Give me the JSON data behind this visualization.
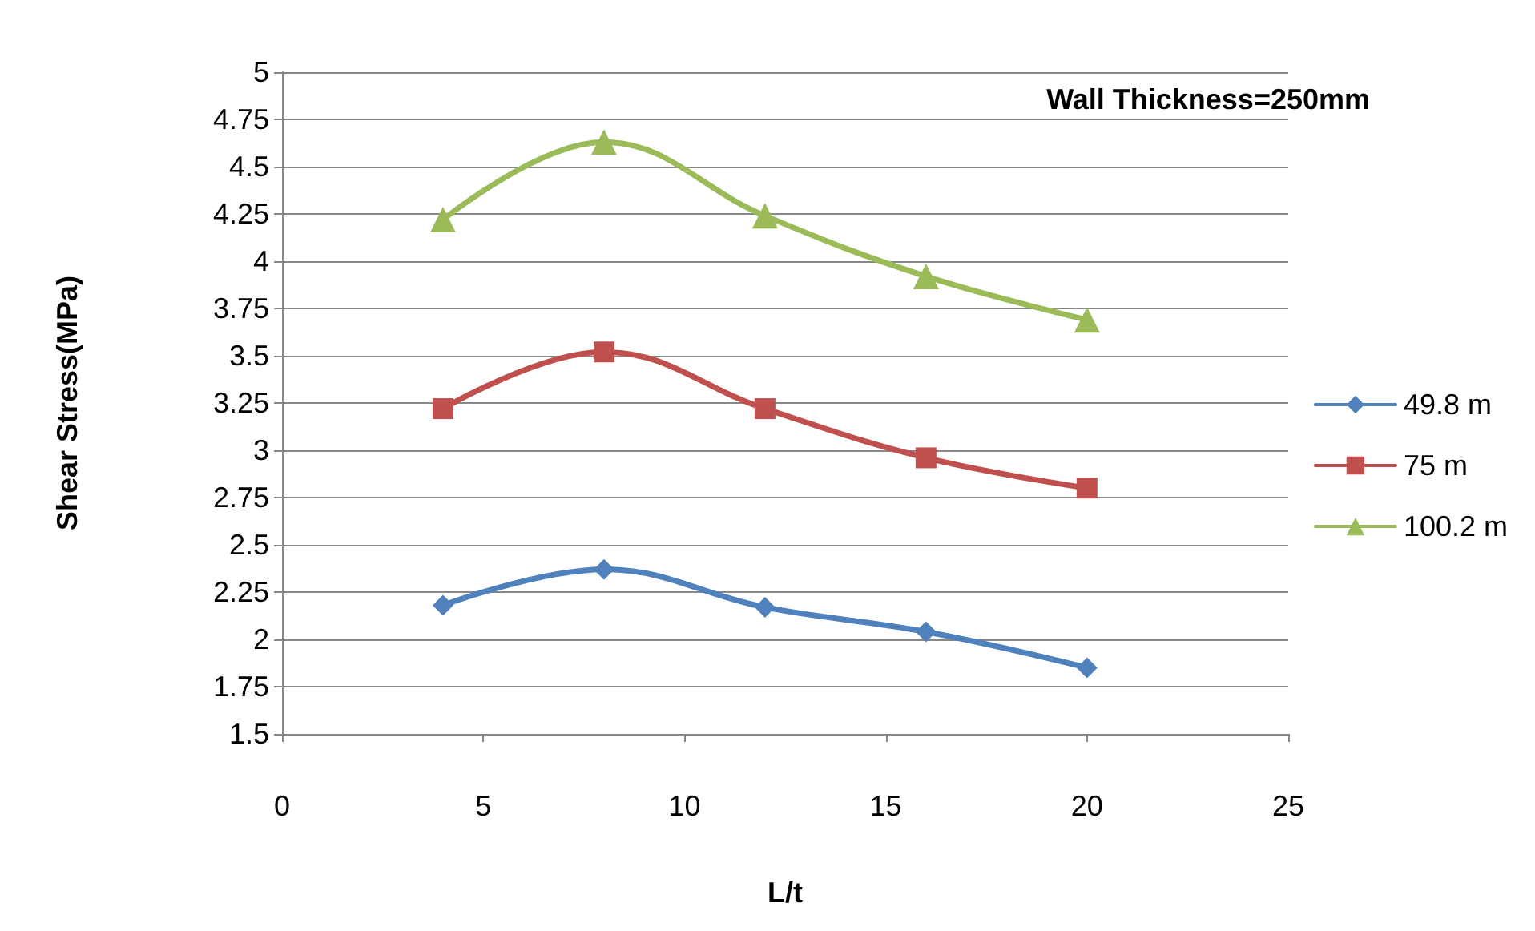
{
  "chart_data": {
    "type": "line",
    "title": "Wall Thickness=250mm",
    "xlabel": "L/t",
    "ylabel": "Shear Stress(MPa)",
    "x": [
      4,
      8,
      12,
      16,
      20
    ],
    "series": [
      {
        "name": "49.8 m",
        "color": "#4f81bd",
        "marker": "diamond",
        "values": [
          2.18,
          2.37,
          2.17,
          2.04,
          1.85
        ]
      },
      {
        "name": "75 m",
        "color": "#c0504d",
        "marker": "square",
        "values": [
          3.22,
          3.52,
          3.22,
          2.96,
          2.8
        ]
      },
      {
        "name": "100.2 m",
        "color": "#9bbb59",
        "marker": "triangle",
        "values": [
          4.22,
          4.63,
          4.24,
          3.92,
          3.69
        ]
      }
    ],
    "xlim": [
      0,
      25
    ],
    "xticks": [
      0,
      5,
      10,
      15,
      20,
      25
    ],
    "ylim": [
      1.5,
      5
    ],
    "yticks": [
      1.5,
      1.75,
      2,
      2.25,
      2.5,
      2.75,
      3,
      3.25,
      3.5,
      3.75,
      4,
      4.25,
      4.5,
      4.75,
      5
    ],
    "grid": "y",
    "legend": "right",
    "line_style": "solid"
  }
}
